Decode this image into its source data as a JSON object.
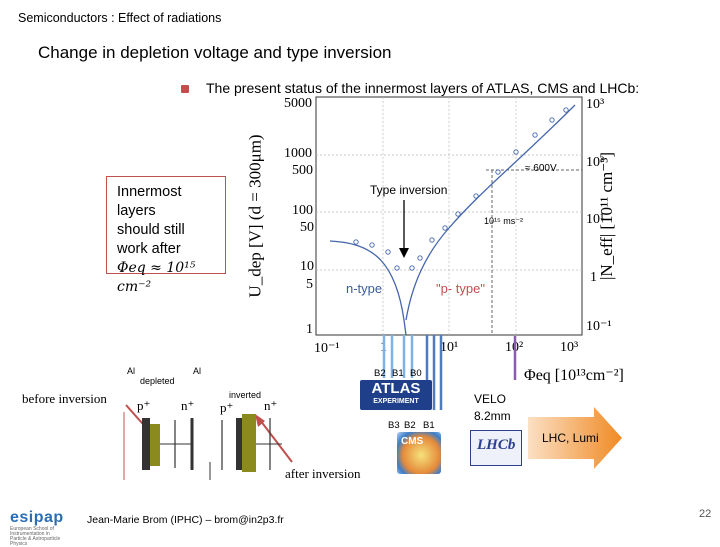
{
  "slide": {
    "topic": "Semiconductors : Effect of radiations",
    "title": "Change in depletion voltage and type inversion",
    "bullet": "The present status of the innermost layers of ATLAS, CMS and LHCb:",
    "callout_lines": [
      "Innermost layers",
      "should still work after"
    ],
    "callout_formula": "Φeq ≈ 10¹⁵ cm⁻²",
    "footer": "Jean-Marie Brom (IPHC) – brom@in2p3.fr",
    "page_number": "22",
    "logo_text": "esipap",
    "logo_sub": "European School of Instrumentation in Particle & Astroparticle Physics"
  },
  "plot": {
    "y_left_label": "U_dep [V] (d = 300μm)",
    "y_right_label": "|N_eff| [10¹¹ cm⁻³]",
    "x_label": "Φeq [10¹³cm⁻²]",
    "left_ticks": [
      "5000",
      "1000",
      "500",
      "100",
      "50",
      "10",
      "5",
      "1"
    ],
    "right_ticks": [
      "10³",
      "10²",
      "10¹",
      "1",
      "10⁻¹"
    ],
    "x_ticks": [
      "10⁻¹",
      "1",
      "10¹",
      "10²",
      "10³"
    ],
    "annot_600v": "≈ 600V",
    "annot_type_inversion": "Type inversion",
    "annot_fluence": "10¹⁵ ms⁻²",
    "annot_ntype": "n-type",
    "annot_ptype": "\"p- type\""
  },
  "diagram": {
    "label_before": "before inversion",
    "label_after": "after inversion",
    "al_left": "Al",
    "al_right": "Al",
    "depleted": "depleted",
    "inverted": "inverted",
    "p_plus": "p⁺",
    "n_plus": "n⁺",
    "p_plus2": "p⁺",
    "n_plus2": "n⁺"
  },
  "detectors": {
    "atlas_layers": [
      "B2",
      "B1",
      "B0"
    ],
    "atlas_name": "ATLAS",
    "atlas_sub": "EXPERIMENT",
    "cms_layers": [
      "B3",
      "B2",
      "B1"
    ],
    "cms_name": "CMS",
    "velo": "VELO",
    "velo_dist": "8.2mm",
    "lhcb": "LHCb",
    "lhc_arrow": "LHC, Lumi"
  }
}
